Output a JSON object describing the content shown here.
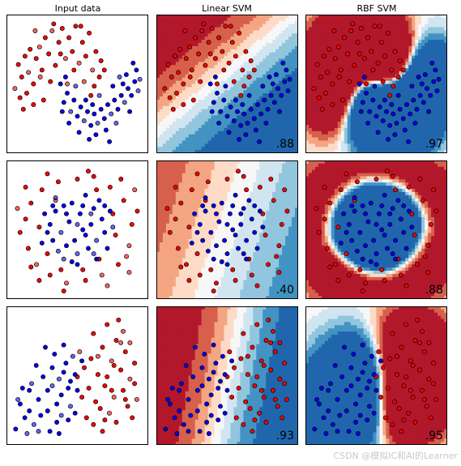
{
  "figure": {
    "column_titles": [
      "Input data",
      "Linear SVM",
      "RBF SVM"
    ],
    "watermark": "CSDN @模拟IC和AI的Learner"
  },
  "colors": {
    "class_red": "#ff0000",
    "class_blue": "#0000ff",
    "point_edge": "#000000",
    "cmap": "RdBu"
  },
  "chart_data": [
    {
      "type": "scatter",
      "dataset": "moons",
      "xlim": [
        -1.6,
        2.6
      ],
      "ylim": [
        -1.2,
        1.8
      ],
      "scores": {
        "Linear SVM": ".88",
        "RBF SVM": ".97"
      },
      "red_points": [
        [
          -1.25,
          0.72
        ],
        [
          -1.15,
          0.45
        ],
        [
          -1.05,
          0.9
        ],
        [
          -0.95,
          0.55
        ],
        [
          -0.9,
          1.05
        ],
        [
          -0.8,
          0.3
        ],
        [
          -0.72,
          0.85
        ],
        [
          -0.62,
          1.1
        ],
        [
          -0.55,
          0.6
        ],
        [
          -0.45,
          1.3
        ],
        [
          -0.35,
          0.95
        ],
        [
          -0.25,
          1.45
        ],
        [
          -0.15,
          0.7
        ],
        [
          -0.05,
          1.2
        ],
        [
          0.05,
          1.5
        ],
        [
          0.15,
          0.85
        ],
        [
          0.25,
          1.3
        ],
        [
          0.35,
          1.0
        ],
        [
          0.45,
          1.55
        ],
        [
          0.55,
          0.75
        ],
        [
          0.65,
          1.2
        ],
        [
          0.75,
          0.9
        ],
        [
          0.85,
          1.4
        ],
        [
          0.95,
          0.6
        ],
        [
          1.05,
          1.0
        ],
        [
          1.15,
          0.45
        ],
        [
          1.2,
          0.8
        ],
        [
          -1.35,
          0.2
        ],
        [
          -1.2,
          0.0
        ],
        [
          -1.0,
          0.1
        ],
        [
          -0.8,
          -0.15
        ],
        [
          -0.6,
          0.45
        ],
        [
          -0.3,
          0.35
        ],
        [
          0.0,
          0.95
        ],
        [
          0.4,
          0.6
        ],
        [
          0.7,
          0.35
        ],
        [
          1.0,
          0.25
        ],
        [
          -0.5,
          -0.05
        ],
        [
          -1.1,
          -0.25
        ],
        [
          0.2,
          0.3
        ],
        [
          0.9,
          0.05
        ],
        [
          -0.2,
          1.6
        ],
        [
          0.6,
          1.55
        ],
        [
          -0.75,
          1.45
        ],
        [
          1.3,
          0.6
        ]
      ],
      "blue_points": [
        [
          0.0,
          0.3
        ],
        [
          0.1,
          -0.1
        ],
        [
          0.2,
          0.1
        ],
        [
          0.3,
          -0.3
        ],
        [
          0.4,
          -0.05
        ],
        [
          0.5,
          -0.4
        ],
        [
          0.6,
          -0.2
        ],
        [
          0.7,
          -0.5
        ],
        [
          0.8,
          -0.3
        ],
        [
          0.9,
          -0.6
        ],
        [
          1.0,
          -0.35
        ],
        [
          1.1,
          -0.55
        ],
        [
          1.2,
          -0.25
        ],
        [
          1.3,
          -0.45
        ],
        [
          1.4,
          -0.15
        ],
        [
          1.5,
          -0.35
        ],
        [
          1.6,
          -0.05
        ],
        [
          1.7,
          -0.25
        ],
        [
          1.8,
          0.05
        ],
        [
          1.9,
          -0.1
        ],
        [
          2.0,
          0.2
        ],
        [
          2.1,
          0.05
        ],
        [
          2.2,
          0.35
        ],
        [
          2.3,
          0.15
        ],
        [
          1.95,
          0.5
        ],
        [
          2.25,
          0.6
        ],
        [
          0.15,
          0.45
        ],
        [
          0.45,
          0.25
        ],
        [
          0.75,
          -0.05
        ],
        [
          1.05,
          -0.8
        ],
        [
          1.35,
          -0.7
        ],
        [
          1.65,
          -0.55
        ],
        [
          0.25,
          -0.55
        ],
        [
          0.55,
          -0.75
        ],
        [
          0.85,
          -0.9
        ],
        [
          1.15,
          0.05
        ],
        [
          1.55,
          0.25
        ],
        [
          1.85,
          0.3
        ],
        [
          2.05,
          -0.3
        ],
        [
          2.35,
          0.4
        ],
        [
          0.05,
          -0.3
        ],
        [
          1.45,
          -0.95
        ],
        [
          0.95,
          -0.15
        ],
        [
          1.75,
          0.45
        ],
        [
          2.15,
          0.75
        ]
      ]
    },
    {
      "type": "scatter",
      "dataset": "circles",
      "xlim": [
        -1.3,
        1.3
      ],
      "ylim": [
        -1.3,
        1.3
      ],
      "scores": {
        "Linear SVM": ".40",
        "RBF SVM": ".88"
      },
      "red_points": [
        [
          -0.95,
          0.2
        ],
        [
          -0.9,
          -0.35
        ],
        [
          -0.85,
          0.5
        ],
        [
          -0.75,
          -0.65
        ],
        [
          -0.65,
          0.75
        ],
        [
          -0.5,
          -0.85
        ],
        [
          -0.35,
          0.9
        ],
        [
          -0.2,
          -1.0
        ],
        [
          0.0,
          0.95
        ],
        [
          0.15,
          -0.95
        ],
        [
          0.3,
          1.0
        ],
        [
          0.45,
          -0.85
        ],
        [
          0.6,
          0.8
        ],
        [
          0.75,
          -0.65
        ],
        [
          0.85,
          0.55
        ],
        [
          0.95,
          -0.3
        ],
        [
          1.0,
          0.1
        ],
        [
          -1.05,
          -0.05
        ],
        [
          -0.55,
          1.05
        ],
        [
          0.55,
          -1.05
        ],
        [
          -0.25,
          -1.15
        ],
        [
          0.8,
          0.95
        ],
        [
          -0.95,
          0.8
        ],
        [
          0.95,
          -0.8
        ],
        [
          -0.7,
          -0.95
        ],
        [
          0.2,
          1.1
        ],
        [
          1.1,
          0.35
        ],
        [
          -1.1,
          0.4
        ],
        [
          0.65,
          0.3
        ],
        [
          -0.55,
          -0.45
        ],
        [
          0.1,
          -0.75
        ],
        [
          -0.4,
          0.55
        ],
        [
          0.4,
          -0.55
        ],
        [
          -0.7,
          0.05
        ],
        [
          0.7,
          -0.1
        ],
        [
          1.05,
          0.75
        ],
        [
          -0.85,
          -0.7
        ],
        [
          0.35,
          0.75
        ],
        [
          -0.3,
          -0.75
        ],
        [
          0.9,
          -0.5
        ]
      ],
      "blue_points": [
        [
          -0.5,
          0.1
        ],
        [
          -0.45,
          -0.2
        ],
        [
          -0.4,
          0.35
        ],
        [
          -0.35,
          -0.4
        ],
        [
          -0.25,
          0.45
        ],
        [
          -0.2,
          -0.3
        ],
        [
          -0.1,
          0.5
        ],
        [
          0.0,
          -0.45
        ],
        [
          0.1,
          0.45
        ],
        [
          0.2,
          -0.35
        ],
        [
          0.3,
          0.4
        ],
        [
          0.35,
          -0.2
        ],
        [
          0.45,
          0.2
        ],
        [
          0.5,
          -0.05
        ],
        [
          -0.55,
          -0.05
        ],
        [
          0.0,
          0.1
        ],
        [
          0.15,
          -0.1
        ],
        [
          -0.15,
          0.15
        ],
        [
          0.25,
          0.1
        ],
        [
          -0.3,
          -0.05
        ],
        [
          0.05,
          0.3
        ],
        [
          -0.05,
          -0.2
        ],
        [
          0.4,
          0.55
        ],
        [
          -0.4,
          0.6
        ],
        [
          0.6,
          0.35
        ],
        [
          -0.6,
          0.3
        ],
        [
          0.55,
          -0.35
        ],
        [
          -0.25,
          -0.55
        ],
        [
          0.15,
          0.65
        ],
        [
          -0.1,
          -0.6
        ],
        [
          0.35,
          -0.55
        ],
        [
          0.65,
          0.05
        ],
        [
          -0.65,
          -0.25
        ],
        [
          0.1,
          0.0
        ],
        [
          -0.2,
          0.3
        ],
        [
          0.3,
          -0.45
        ],
        [
          0.5,
          0.45
        ],
        [
          -0.45,
          0.45
        ],
        [
          0.0,
          -0.65
        ],
        [
          0.25,
          0.3
        ]
      ]
    },
    {
      "type": "scatter",
      "dataset": "linearly_separable",
      "xlim": [
        -1.8,
        4.4
      ],
      "ylim": [
        -1.5,
        4.6
      ],
      "scores": {
        "Linear SVM": ".93",
        "RBF SVM": ".95"
      },
      "red_points": [
        [
          2.0,
          3.4
        ],
        [
          2.4,
          2.8
        ],
        [
          2.6,
          3.8
        ],
        [
          2.8,
          2.2
        ],
        [
          3.0,
          3.1
        ],
        [
          3.2,
          1.8
        ],
        [
          3.4,
          2.6
        ],
        [
          3.6,
          1.4
        ],
        [
          3.8,
          2.1
        ],
        [
          2.2,
          1.6
        ],
        [
          2.5,
          1.1
        ],
        [
          2.9,
          0.6
        ],
        [
          3.3,
          0.9
        ],
        [
          3.5,
          0.2
        ],
        [
          3.7,
          -0.3
        ],
        [
          2.7,
          -0.1
        ],
        [
          2.1,
          0.4
        ],
        [
          1.8,
          1.0
        ],
        [
          1.6,
          1.9
        ],
        [
          1.4,
          2.6
        ],
        [
          2.0,
          -0.6
        ],
        [
          2.4,
          -0.9
        ],
        [
          3.0,
          -0.5
        ],
        [
          3.9,
          0.5
        ],
        [
          3.1,
          4.0
        ],
        [
          1.9,
          2.3
        ],
        [
          2.3,
          0.1
        ],
        [
          3.3,
          3.5
        ],
        [
          2.6,
          1.5
        ],
        [
          1.5,
          0.6
        ],
        [
          2.8,
          0.9
        ],
        [
          3.6,
          3.0
        ],
        [
          1.7,
          -0.3
        ],
        [
          2.9,
          2.0
        ],
        [
          3.4,
          0.5
        ],
        [
          2.2,
          2.4
        ],
        [
          3.8,
          1.2
        ],
        [
          1.3,
          1.5
        ],
        [
          2.5,
          -0.4
        ],
        [
          3.2,
          3.0
        ]
      ],
      "blue_points": [
        [
          -1.2,
          0.3
        ],
        [
          -1.0,
          -0.3
        ],
        [
          -0.8,
          0.9
        ],
        [
          -0.6,
          -0.6
        ],
        [
          -0.4,
          0.5
        ],
        [
          -0.2,
          1.5
        ],
        [
          0.0,
          0.0
        ],
        [
          0.2,
          1.1
        ],
        [
          0.4,
          -0.5
        ],
        [
          0.6,
          0.7
        ],
        [
          0.8,
          2.1
        ],
        [
          1.0,
          0.2
        ],
        [
          1.2,
          1.6
        ],
        [
          -0.5,
          2.0
        ],
        [
          -1.4,
          -0.8
        ],
        [
          -0.9,
          -1.0
        ],
        [
          0.1,
          -0.9
        ],
        [
          0.5,
          -1.0
        ],
        [
          0.9,
          -0.4
        ],
        [
          1.1,
          2.4
        ],
        [
          0.3,
          2.5
        ],
        [
          -0.1,
          2.8
        ],
        [
          0.7,
          1.7
        ],
        [
          -0.7,
          1.2
        ],
        [
          1.3,
          0.9
        ],
        [
          0.0,
          0.9
        ],
        [
          -1.1,
          1.0
        ],
        [
          0.6,
          -0.2
        ],
        [
          1.5,
          2.2
        ],
        [
          0.9,
          1.0
        ],
        [
          -0.3,
          -0.2
        ],
        [
          -1.3,
          0.5
        ],
        [
          0.4,
          0.3
        ],
        [
          1.2,
          -0.1
        ],
        [
          0.7,
          2.9
        ],
        [
          -0.4,
          -0.9
        ],
        [
          0.2,
          1.9
        ],
        [
          1.0,
          1.3
        ],
        [
          -0.8,
          0.0
        ],
        [
          0.5,
          1.4
        ]
      ]
    }
  ]
}
